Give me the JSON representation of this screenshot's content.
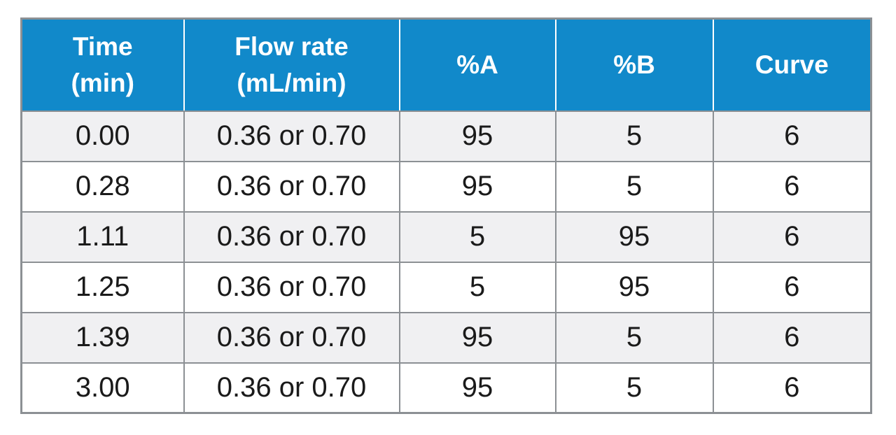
{
  "chart_data": {
    "type": "table",
    "title": "",
    "columns": [
      "Time (min)",
      "Flow rate (mL/min)",
      "%A",
      "%B",
      "Curve"
    ],
    "rows": [
      [
        "0.00",
        "0.36 or 0.70",
        "95",
        "5",
        "6"
      ],
      [
        "0.28",
        "0.36 or 0.70",
        "95",
        "5",
        "6"
      ],
      [
        "1.11",
        "0.36 or 0.70",
        "5",
        "95",
        "6"
      ],
      [
        "1.25",
        "0.36 or 0.70",
        "5",
        "95",
        "6"
      ],
      [
        "1.39",
        "0.36 or 0.70",
        "95",
        "5",
        "6"
      ],
      [
        "3.00",
        "0.36 or 0.70",
        "95",
        "5",
        "6"
      ]
    ]
  },
  "table": {
    "headers": [
      [
        "Time",
        "(min)"
      ],
      [
        "Flow rate",
        "(mL/min)"
      ],
      [
        "%A"
      ],
      [
        "%B"
      ],
      [
        "Curve"
      ]
    ],
    "rows": [
      [
        "0.00",
        "0.36 or 0.70",
        "95",
        "5",
        "6"
      ],
      [
        "0.28",
        "0.36 or 0.70",
        "95",
        "5",
        "6"
      ],
      [
        "1.11",
        "0.36 or 0.70",
        "5",
        "95",
        "6"
      ],
      [
        "1.25",
        "0.36 or 0.70",
        "5",
        "95",
        "6"
      ],
      [
        "1.39",
        "0.36 or 0.70",
        "95",
        "5",
        "6"
      ],
      [
        "3.00",
        "0.36 or 0.70",
        "95",
        "5",
        "6"
      ]
    ],
    "colors": {
      "header_bg": "#1189ca",
      "header_text": "#ffffff",
      "row_alt_bg": "#f0f0f2",
      "row_bg": "#ffffff",
      "grid_border": "#8c9094",
      "body_text": "#1a1a1a"
    }
  }
}
